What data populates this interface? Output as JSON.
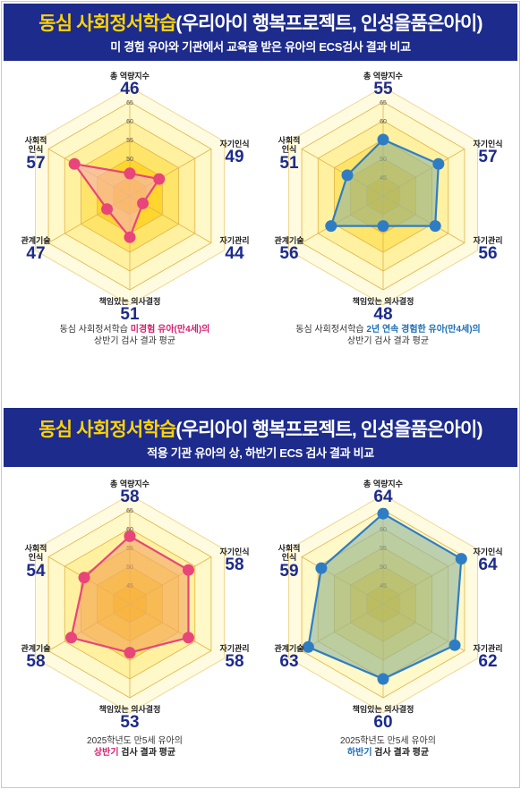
{
  "banners": [
    {
      "title_bold": "동심 사회정서학습",
      "title_rest": "(우리아이 행복프로젝트, 인성을품은아이)",
      "subtitle": "미 경험 유아와 기관에서 교육을 받은 유아의 ECS검사 결과 비교"
    },
    {
      "title_bold": "동심 사회정서학습",
      "title_rest": "(우리아이 행복프로젝트, 인성을품은아이)",
      "subtitle": "적용 기관 유아의 상, 하반기 ECS 검사 결과 비교"
    }
  ],
  "colors": {
    "banner_bg": "#1c2b8c",
    "banner_highlight": "#ffd400",
    "value_text": "#1c2b8c",
    "pink": "#e8457a",
    "blue": "#2e7dc4"
  },
  "scale_ticks": [
    "45",
    "50",
    "55",
    "60",
    "65"
  ],
  "axes": [
    "총 역량지수",
    "자기인식",
    "자기관리",
    "책임있는 의사결정",
    "관계기술",
    "사회적 인식"
  ],
  "chart_data": [
    {
      "type": "radar",
      "categories": [
        "총 역량지수",
        "자기인식",
        "자기관리",
        "책임있는 의사결정",
        "관계기술",
        "사회적 인식"
      ],
      "values": [
        46,
        49,
        44,
        51,
        47,
        57
      ],
      "rlim": [
        40,
        65
      ],
      "color": "#e8457a",
      "fill": "#f5b0b8",
      "caption_line1_pre": "동심 사회정서학습 ",
      "caption_line1_em": "미경험 유아(만4세)의",
      "caption_line2": "상반기 검사 결과 평균"
    },
    {
      "type": "radar",
      "categories": [
        "총 역량지수",
        "자기인식",
        "자기관리",
        "책임있는 의사결정",
        "관계기술",
        "사회적 인식"
      ],
      "values": [
        55,
        57,
        56,
        48,
        56,
        51
      ],
      "rlim": [
        40,
        65
      ],
      "color": "#2e7dc4",
      "fill": "#8fb6a0",
      "caption_line1_pre": "동심 사회정서학습 ",
      "caption_line1_em": "2년 연속 경험한 유아(만4세)의",
      "caption_line2": "상반기 검사 결과 평균"
    },
    {
      "type": "radar",
      "categories": [
        "총 역량지수",
        "자기인식",
        "자기관리",
        "책임있는 의사결정",
        "관계기술",
        "사회적 인식"
      ],
      "values": [
        58,
        58,
        58,
        53,
        58,
        54
      ],
      "rlim": [
        40,
        65
      ],
      "color": "#e8457a",
      "fill": "#f3a86a",
      "caption_line1_pre": "2025학년도 만5세 유아의",
      "caption_line1_em": "",
      "caption_line2_em": "상반기",
      "caption_line2": " 검사 결과 평균"
    },
    {
      "type": "radar",
      "categories": [
        "총 역량지수",
        "자기인식",
        "자기관리",
        "책임있는 의사결정",
        "관계기술",
        "사회적 인식"
      ],
      "values": [
        64,
        64,
        62,
        60,
        63,
        59
      ],
      "rlim": [
        40,
        65
      ],
      "color": "#2e7dc4",
      "fill": "#8fb6a0",
      "caption_line1_pre": "2025학년도 만5세 유아의",
      "caption_line1_em": "",
      "caption_line2_em": "하반기",
      "caption_line2": " 검사 결과 평균"
    }
  ]
}
